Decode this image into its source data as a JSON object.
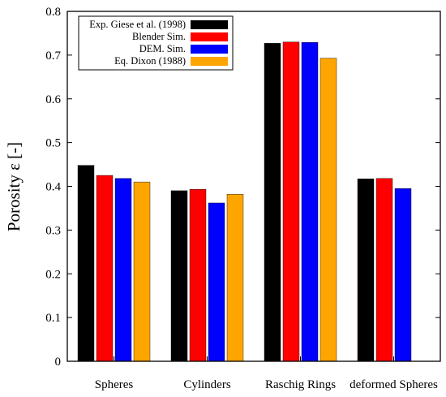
{
  "chart_data": {
    "type": "bar",
    "title": "",
    "xlabel": "",
    "ylabel": "Porosity ε [-]",
    "ylim": [
      0,
      0.8
    ],
    "yticks": [
      "0",
      "0.1",
      "0.2",
      "0.3",
      "0.4",
      "0.5",
      "0.6",
      "0.7",
      "0.8"
    ],
    "categories": [
      "Spheres",
      "Cylinders",
      "Raschig Rings",
      "deformed Spheres"
    ],
    "grid": false,
    "legend_position": "top-left",
    "series": [
      {
        "name": "Exp. Giese et al. (1998)",
        "color": "#000000",
        "values": [
          0.448,
          0.39,
          0.727,
          0.417
        ]
      },
      {
        "name": "Blender Sim.",
        "color": "#ff0000",
        "values": [
          0.425,
          0.393,
          0.73,
          0.418
        ]
      },
      {
        "name": "DEM. Sim.",
        "color": "#0000ff",
        "values": [
          0.418,
          0.362,
          0.729,
          0.395
        ]
      },
      {
        "name": "Eq. Dixon (1988)",
        "color": "#ffa500",
        "values": [
          0.41,
          0.382,
          0.693,
          null
        ]
      }
    ]
  }
}
